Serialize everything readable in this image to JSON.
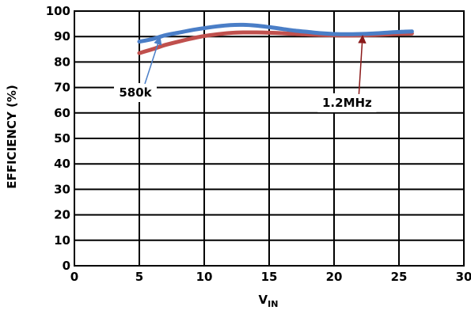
{
  "chart_data": {
    "type": "line",
    "title": "",
    "xlabel": {
      "main": "V",
      "sub": "IN"
    },
    "ylabel": "EFFICIENCY (%)",
    "xlim": [
      0,
      30
    ],
    "ylim": [
      0,
      100
    ],
    "xticks": [
      "0",
      "5",
      "10",
      "15",
      "20",
      "25",
      "30"
    ],
    "yticks": [
      "0",
      "10",
      "20",
      "30",
      "40",
      "50",
      "60",
      "70",
      "80",
      "90",
      "100"
    ],
    "grid": true,
    "series": [
      {
        "name": "580k",
        "color": "#4a7ec7",
        "x": [
          5,
          6,
          7,
          8,
          9,
          10,
          11,
          12,
          13,
          14,
          15,
          16,
          17,
          18,
          19,
          20,
          21,
          22,
          23,
          24,
          25,
          26
        ],
        "y": [
          88,
          89,
          90.5,
          91.5,
          92.5,
          93.3,
          94,
          94.5,
          94.6,
          94.3,
          93.7,
          93,
          92.3,
          91.8,
          91.3,
          91,
          90.9,
          91,
          91.2,
          91.5,
          91.8,
          92
        ]
      },
      {
        "name": "1.2MHz",
        "color": "#c0504d",
        "x": [
          5,
          6,
          7,
          8,
          9,
          10,
          11,
          12,
          13,
          14,
          15,
          16,
          17,
          18,
          19,
          20,
          21,
          22,
          23,
          24,
          25,
          26
        ],
        "y": [
          83.5,
          85,
          86.7,
          88,
          89.2,
          90.2,
          90.9,
          91.4,
          91.6,
          91.6,
          91.5,
          91.3,
          91,
          90.8,
          90.6,
          90.5,
          90.4,
          90.5,
          90.6,
          90.8,
          91,
          91.2
        ]
      }
    ],
    "annotations": [
      {
        "text": "580k",
        "series": "580k",
        "color": "#4a7ec7",
        "label_at": [
          5,
          68
        ],
        "arrow_to": [
          6.6,
          89.8
        ]
      },
      {
        "text": "1.2MHz",
        "series": "1.2MHz",
        "color": "#8b1a1a",
        "label_at": [
          21,
          64
        ],
        "arrow_to": [
          22.2,
          90.3
        ]
      }
    ]
  }
}
